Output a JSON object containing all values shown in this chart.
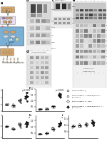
{
  "bg_color": "#ffffff",
  "figure_width": 1.5,
  "figure_height": 1.98,
  "dpi": 100,
  "scatter_panels": {
    "e": {
      "means": [
        1.0,
        0.92,
        1.28,
        1.58
      ],
      "stds": [
        0.04,
        0.09,
        0.12,
        0.28
      ],
      "n_pts": [
        8,
        8,
        8,
        8
      ],
      "pval": "p=0.0001",
      "ylim": [
        0.55,
        2.1
      ],
      "yticks": [
        0.5,
        1.0,
        1.5,
        2.0
      ]
    },
    "f": {
      "means": [
        0.28,
        0.33,
        0.52,
        1.42
      ],
      "stds": [
        0.02,
        0.04,
        0.07,
        0.22
      ],
      "n_pts": [
        8,
        8,
        8,
        8
      ],
      "pval": "p=0.0001",
      "ylim": [
        0.1,
        2.0
      ],
      "yticks": [
        0.5,
        1.0,
        1.5,
        2.0
      ]
    },
    "g": {
      "means": [
        1.0,
        0.88,
        1.08,
        1.12
      ],
      "stds": [
        0.04,
        0.07,
        0.09,
        0.14
      ],
      "n_pts": [
        8,
        8,
        8,
        8
      ],
      "pval": "ns",
      "ylim": [
        0.45,
        1.5
      ],
      "yticks": [
        0.5,
        1.0,
        1.5
      ]
    },
    "h": {
      "means": [
        0.45,
        0.52,
        0.85,
        1.28
      ],
      "stds": [
        0.03,
        0.06,
        0.14,
        0.22
      ],
      "n_pts": [
        8,
        8,
        8,
        8
      ],
      "pval": "ns",
      "ylim": [
        0.1,
        1.9
      ],
      "yticks": [
        0.5,
        1.0,
        1.5
      ]
    },
    "i": {
      "means": [
        0.98,
        1.0,
        1.03,
        1.08
      ],
      "stds": [
        0.03,
        0.04,
        0.06,
        0.1
      ],
      "n_pts": [
        8,
        8,
        8,
        8
      ],
      "pval": "",
      "ylim": [
        0.6,
        1.3
      ],
      "yticks": [
        0.8,
        1.0,
        1.2
      ]
    }
  },
  "marker_styles": [
    "o",
    "o",
    "D",
    "D"
  ],
  "face_colors": [
    "#ffffff",
    "#ffffff",
    "#ffffff",
    "#222222"
  ],
  "edge_colors": [
    "#333333",
    "#333333",
    "#333333",
    "#111111"
  ],
  "legend_labels": [
    "B-Raf inhibitor (i)",
    "B-Raf inhibitor + veganib/Class II (p=0.01+i)",
    "B-Raf inhibitor + i (rev)",
    "B-Raf inhibitor + veganib/Class II + i (p=0.01+i)"
  ],
  "wb_bg": "#e8e8e8",
  "wb_light": "#d0d0d0",
  "wb_dark": "#888888",
  "schematic_tan": "#d4a56a",
  "schematic_blue": "#7bafd4",
  "schematic_purple": "#9b7ab8",
  "schematic_green": "#8dc48e"
}
